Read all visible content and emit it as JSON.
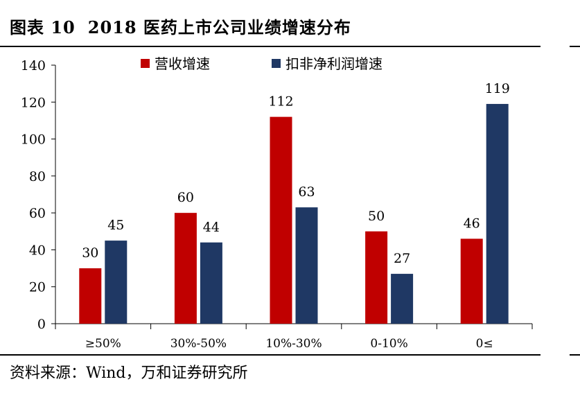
{
  "title": {
    "label": "图表 10",
    "text": "2018 医药上市公司业绩增速分布"
  },
  "source": "资料来源：Wind，万和证券研究所",
  "chart_data": {
    "type": "bar",
    "title": "2018 医药上市公司业绩增速分布",
    "xlabel": "",
    "ylabel": "",
    "categories": [
      "≥50%",
      "30%-50%",
      "10%-30%",
      "0-10%",
      "0≤"
    ],
    "ylim": [
      0,
      140
    ],
    "yticks": [
      0,
      20,
      40,
      60,
      80,
      100,
      120,
      140
    ],
    "grid": false,
    "legend_position": "top",
    "series": [
      {
        "name": "营收增速",
        "color": "#c00000",
        "values": [
          30,
          60,
          112,
          50,
          46
        ]
      },
      {
        "name": "扣非净利润增速",
        "color": "#1f3864",
        "values": [
          45,
          44,
          63,
          27,
          119
        ]
      }
    ]
  }
}
